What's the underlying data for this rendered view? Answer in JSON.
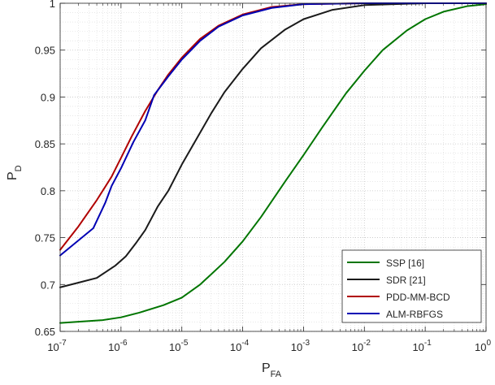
{
  "chart_data": {
    "type": "line",
    "xlabel": {
      "main": "P",
      "sub": "FA"
    },
    "ylabel": {
      "main": "P",
      "sub": "D"
    },
    "x_scale": "log",
    "xlim": [
      1e-07,
      1
    ],
    "ylim": [
      0.65,
      1
    ],
    "grid": true,
    "legend_position": "bottom-right",
    "x_ticks": [
      {
        "value": 1e-07,
        "base": "10",
        "exp": "-7"
      },
      {
        "value": 1e-06,
        "base": "10",
        "exp": "-6"
      },
      {
        "value": 1e-05,
        "base": "10",
        "exp": "-5"
      },
      {
        "value": 0.0001,
        "base": "10",
        "exp": "-4"
      },
      {
        "value": 0.001,
        "base": "10",
        "exp": "-3"
      },
      {
        "value": 0.01,
        "base": "10",
        "exp": "-2"
      },
      {
        "value": 0.1,
        "base": "10",
        "exp": "-1"
      },
      {
        "value": 1,
        "base": "10",
        "exp": "0"
      }
    ],
    "y_ticks": [
      {
        "value": 0.65,
        "label": "0.65"
      },
      {
        "value": 0.7,
        "label": "0.7"
      },
      {
        "value": 0.75,
        "label": "0.75"
      },
      {
        "value": 0.8,
        "label": "0.8"
      },
      {
        "value": 0.85,
        "label": "0.85"
      },
      {
        "value": 0.9,
        "label": "0.9"
      },
      {
        "value": 0.95,
        "label": "0.95"
      },
      {
        "value": 1,
        "label": "1"
      }
    ],
    "series": [
      {
        "name": "SSP [16]",
        "color": "#007500",
        "points": [
          [
            1e-07,
            0.659
          ],
          [
            5e-07,
            0.662
          ],
          [
            1e-06,
            0.665
          ],
          [
            2e-06,
            0.67
          ],
          [
            5e-06,
            0.678
          ],
          [
            1e-05,
            0.686
          ],
          [
            2e-05,
            0.7
          ],
          [
            5e-05,
            0.724
          ],
          [
            0.0001,
            0.746
          ],
          [
            0.0002,
            0.772
          ],
          [
            0.0005,
            0.81
          ],
          [
            0.001,
            0.838
          ],
          [
            0.002,
            0.867
          ],
          [
            0.005,
            0.904
          ],
          [
            0.01,
            0.928
          ],
          [
            0.02,
            0.95
          ],
          [
            0.05,
            0.971
          ],
          [
            0.1,
            0.983
          ],
          [
            0.2,
            0.991
          ],
          [
            0.5,
            0.997
          ],
          [
            1,
            0.999
          ]
        ]
      },
      {
        "name": "SDR [21]",
        "color": "#1a1a1a",
        "points": [
          [
            1e-07,
            0.697
          ],
          [
            2e-07,
            0.702
          ],
          [
            4e-07,
            0.707
          ],
          [
            8e-07,
            0.72
          ],
          [
            1.2e-06,
            0.73
          ],
          [
            1.8e-06,
            0.745
          ],
          [
            2.5e-06,
            0.758
          ],
          [
            4e-06,
            0.783
          ],
          [
            6e-06,
            0.8
          ],
          [
            1e-05,
            0.828
          ],
          [
            2e-05,
            0.862
          ],
          [
            3e-05,
            0.882
          ],
          [
            5e-05,
            0.905
          ],
          [
            0.0001,
            0.93
          ],
          [
            0.0002,
            0.952
          ],
          [
            0.0005,
            0.972
          ],
          [
            0.001,
            0.983
          ],
          [
            0.003,
            0.993
          ],
          [
            0.01,
            0.998
          ],
          [
            0.1,
            1.0
          ],
          [
            1,
            1.0
          ]
        ]
      },
      {
        "name": "PDD-MM-BCD",
        "color": "#b00000",
        "points": [
          [
            1e-07,
            0.737
          ],
          [
            2e-07,
            0.762
          ],
          [
            4e-07,
            0.79
          ],
          [
            7e-07,
            0.815
          ],
          [
            1e-06,
            0.835
          ],
          [
            1.5e-06,
            0.858
          ],
          [
            2.5e-06,
            0.885
          ],
          [
            4e-06,
            0.907
          ],
          [
            6e-06,
            0.924
          ],
          [
            1e-05,
            0.942
          ],
          [
            2e-05,
            0.962
          ],
          [
            4e-05,
            0.976
          ],
          [
            0.0001,
            0.988
          ],
          [
            0.0003,
            0.996
          ],
          [
            0.001,
            0.999
          ],
          [
            0.01,
            1.0
          ],
          [
            1,
            1.0
          ]
        ]
      },
      {
        "name": "ALM-RBFGS",
        "color": "#0000b4",
        "points": [
          [
            1e-07,
            0.731
          ],
          [
            3.5e-07,
            0.76
          ],
          [
            5.5e-07,
            0.787
          ],
          [
            7e-07,
            0.805
          ],
          [
            1e-06,
            0.824
          ],
          [
            1.6e-06,
            0.852
          ],
          [
            2.5e-06,
            0.875
          ],
          [
            3.5e-06,
            0.902
          ],
          [
            6e-06,
            0.922
          ],
          [
            1e-05,
            0.94
          ],
          [
            2e-05,
            0.96
          ],
          [
            4e-05,
            0.975
          ],
          [
            0.0001,
            0.987
          ],
          [
            0.0003,
            0.995
          ],
          [
            0.001,
            0.999
          ],
          [
            0.01,
            1.0
          ],
          [
            1,
            1.0
          ]
        ]
      }
    ]
  }
}
